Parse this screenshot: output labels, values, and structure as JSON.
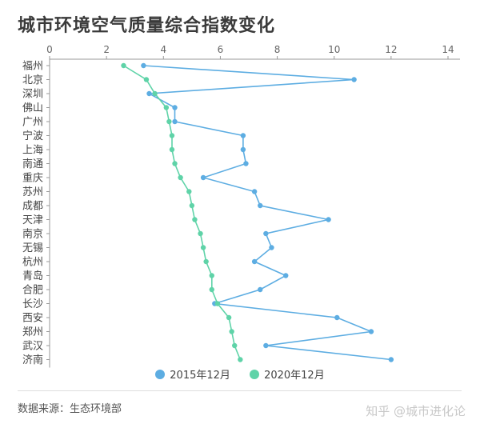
{
  "title": "城市环境空气质量综合指数变化",
  "source_text": "数据来源：生态环境部",
  "watermark": "知乎 @城市进化论",
  "colors": {
    "s2015": "#5dade2",
    "s2020": "#5fd3a8",
    "axis": "#999999"
  },
  "chart_data": {
    "type": "line",
    "orientation": "horizontal",
    "title": "城市环境空气质量综合指数变化",
    "xlim": [
      0,
      14
    ],
    "x_ticks": [
      0,
      2,
      4,
      6,
      8,
      10,
      12,
      14
    ],
    "categories": [
      "福州",
      "北京",
      "深圳",
      "佛山",
      "广州",
      "宁波",
      "上海",
      "南通",
      "重庆",
      "苏州",
      "成都",
      "天津",
      "南京",
      "无锡",
      "杭州",
      "青岛",
      "合肥",
      "长沙",
      "西安",
      "郑州",
      "武汉",
      "济南"
    ],
    "series": [
      {
        "name": "2015年12月",
        "values": [
          3.3,
          10.7,
          3.5,
          4.4,
          4.4,
          6.8,
          6.8,
          6.9,
          5.4,
          7.2,
          7.4,
          9.8,
          7.6,
          7.8,
          7.2,
          8.3,
          7.4,
          5.8,
          10.1,
          11.3,
          7.6,
          12.0
        ]
      },
      {
        "name": "2020年12月",
        "values": [
          2.6,
          3.4,
          3.7,
          4.1,
          4.2,
          4.3,
          4.3,
          4.4,
          4.6,
          4.9,
          5.0,
          5.1,
          5.3,
          5.4,
          5.5,
          5.7,
          5.7,
          5.9,
          6.3,
          6.4,
          6.5,
          6.7
        ]
      }
    ]
  }
}
